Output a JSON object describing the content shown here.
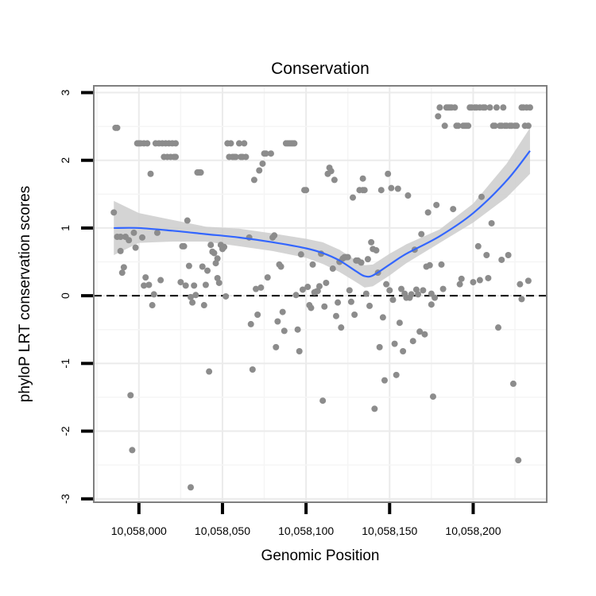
{
  "chart_data": {
    "type": "scatter",
    "title": "Conservation",
    "xlabel": "Genomic Position",
    "ylabel": "phyloP LRT conservation scores",
    "xlim": [
      10057973,
      10058244
    ],
    "ylim": [
      -3.05,
      3.1
    ],
    "x_ticks": [
      10058000,
      10058050,
      10058100,
      10058150,
      10058200
    ],
    "x_tick_labels": [
      "10,058,000",
      "10,058,050",
      "10,058,100",
      "10,058,150",
      "10,058,200"
    ],
    "y_ticks": [
      -3,
      -2,
      -1,
      0,
      1,
      2,
      3
    ],
    "y_tick_labels": [
      "-3",
      "-2",
      "-1",
      "0",
      "1",
      "2",
      "3"
    ],
    "reference_line": {
      "y": 0,
      "style": "dashed"
    },
    "grid": true,
    "colors": {
      "points": "#8c8c8c",
      "smooth": "#3366ff",
      "ribbon": "#cccccc",
      "panel_border": "#7f7f7f",
      "grid": "#ebebeb"
    },
    "series": [
      {
        "name": "phyloP LRT",
        "points": [
          [
            10057985,
            1.23
          ],
          [
            10057986,
            2.48
          ],
          [
            10057987,
            2.48
          ],
          [
            10057987,
            0.87
          ],
          [
            10057989,
            0.66
          ],
          [
            10057989,
            0.87
          ],
          [
            10057990,
            0.34
          ],
          [
            10057991,
            0.42
          ],
          [
            10057992,
            0.87
          ],
          [
            10057994,
            0.82
          ],
          [
            10057995,
            -1.47
          ],
          [
            10057996,
            -2.28
          ],
          [
            10057997,
            0.93
          ],
          [
            10057998,
            0.71
          ],
          [
            10057999,
            2.25
          ],
          [
            10058000,
            2.25
          ],
          [
            10058001,
            2.25
          ],
          [
            10058002,
            0.86
          ],
          [
            10058003,
            2.25
          ],
          [
            10058003,
            0.15
          ],
          [
            10058004,
            0.27
          ],
          [
            10058005,
            2.25
          ],
          [
            10058006,
            0.16
          ],
          [
            10058007,
            1.8
          ],
          [
            10058008,
            -0.14
          ],
          [
            10058009,
            0.02
          ],
          [
            10058010,
            2.25
          ],
          [
            10058011,
            0.93
          ],
          [
            10058012,
            2.25
          ],
          [
            10058013,
            0.23
          ],
          [
            10058014,
            2.25
          ],
          [
            10058015,
            2.05
          ],
          [
            10058016,
            2.25
          ],
          [
            10058017,
            2.05
          ],
          [
            10058018,
            2.25
          ],
          [
            10058019,
            2.05
          ],
          [
            10058020,
            2.25
          ],
          [
            10058021,
            2.05
          ],
          [
            10058022,
            2.25
          ],
          [
            10058022,
            2.05
          ],
          [
            10058025,
            0.2
          ],
          [
            10058026,
            0.73
          ],
          [
            10058027,
            0.73
          ],
          [
            10058028,
            0.15
          ],
          [
            10058029,
            1.11
          ],
          [
            10058030,
            0.44
          ],
          [
            10058031,
            -0.02
          ],
          [
            10058031,
            -2.83
          ],
          [
            10058032,
            -0.1
          ],
          [
            10058033,
            0.15
          ],
          [
            10058034,
            0.01
          ],
          [
            10058035,
            1.82
          ],
          [
            10058036,
            1.82
          ],
          [
            10058037,
            1.82
          ],
          [
            10058038,
            0.43
          ],
          [
            10058039,
            -0.14
          ],
          [
            10058040,
            0.16
          ],
          [
            10058041,
            0.37
          ],
          [
            10058042,
            -1.12
          ],
          [
            10058043,
            0.75
          ],
          [
            10058044,
            0.65
          ],
          [
            10058045,
            0.63
          ],
          [
            10058046,
            0.48
          ],
          [
            10058047,
            0.26
          ],
          [
            10058047,
            0.55
          ],
          [
            10058048,
            0.19
          ],
          [
            10058049,
            0.75
          ],
          [
            10058050,
            0.69
          ],
          [
            10058051,
            0.72
          ],
          [
            10058052,
            -0.01
          ],
          [
            10058053,
            2.25
          ],
          [
            10058054,
            2.05
          ],
          [
            10058055,
            2.25
          ],
          [
            10058056,
            2.05
          ],
          [
            10058057,
            2.05
          ],
          [
            10058058,
            2.05
          ],
          [
            10058060,
            2.25
          ],
          [
            10058061,
            2.05
          ],
          [
            10058062,
            2.05
          ],
          [
            10058063,
            2.25
          ],
          [
            10058064,
            2.05
          ],
          [
            10058066,
            0.86
          ],
          [
            10058067,
            -0.42
          ],
          [
            10058068,
            -1.09
          ],
          [
            10058069,
            1.71
          ],
          [
            10058070,
            0.1
          ],
          [
            10058071,
            -0.28
          ],
          [
            10058072,
            1.85
          ],
          [
            10058073,
            0.12
          ],
          [
            10058074,
            1.95
          ],
          [
            10058075,
            2.1
          ],
          [
            10058076,
            2.1
          ],
          [
            10058077,
            0.27
          ],
          [
            10058079,
            2.1
          ],
          [
            10058080,
            0.86
          ],
          [
            10058081,
            0.89
          ],
          [
            10058082,
            -0.76
          ],
          [
            10058083,
            -0.38
          ],
          [
            10058084,
            0.46
          ],
          [
            10058085,
            0.43
          ],
          [
            10058086,
            -0.24
          ],
          [
            10058087,
            -0.52
          ],
          [
            10058088,
            2.25
          ],
          [
            10058089,
            2.25
          ],
          [
            10058090,
            2.25
          ],
          [
            10058091,
            2.25
          ],
          [
            10058092,
            2.25
          ],
          [
            10058093,
            2.25
          ],
          [
            10058094,
            0.01
          ],
          [
            10058095,
            -0.5
          ],
          [
            10058096,
            -0.82
          ],
          [
            10058097,
            0.61
          ],
          [
            10058098,
            0.09
          ],
          [
            10058099,
            1.56
          ],
          [
            10058100,
            1.56
          ],
          [
            10058101,
            0.13
          ],
          [
            10058102,
            -0.14
          ],
          [
            10058103,
            -0.18
          ],
          [
            10058104,
            0.46
          ],
          [
            10058105,
            0.05
          ],
          [
            10058106,
            0.06
          ],
          [
            10058107,
            0.07
          ],
          [
            10058108,
            0.14
          ],
          [
            10058109,
            0.62
          ],
          [
            10058110,
            -1.55
          ],
          [
            10058111,
            -0.16
          ],
          [
            10058112,
            0.19
          ],
          [
            10058113,
            1.8
          ],
          [
            10058114,
            1.89
          ],
          [
            10058115,
            1.84
          ],
          [
            10058116,
            0.4
          ],
          [
            10058117,
            1.71
          ],
          [
            10058118,
            -0.3
          ],
          [
            10058119,
            -0.1
          ],
          [
            10058120,
            0.5
          ],
          [
            10058121,
            -0.47
          ],
          [
            10058122,
            0.55
          ],
          [
            10058123,
            0.57
          ],
          [
            10058124,
            0.57
          ],
          [
            10058125,
            0.57
          ],
          [
            10058126,
            0.08
          ],
          [
            10058127,
            -0.09
          ],
          [
            10058128,
            1.45
          ],
          [
            10058129,
            -0.28
          ],
          [
            10058130,
            0.52
          ],
          [
            10058131,
            0.52
          ],
          [
            10058132,
            1.56
          ],
          [
            10058133,
            0.49
          ],
          [
            10058134,
            1.56
          ],
          [
            10058134,
            1.73
          ],
          [
            10058135,
            1.56
          ],
          [
            10058136,
            0.03
          ],
          [
            10058137,
            0.54
          ],
          [
            10058138,
            -0.15
          ],
          [
            10058139,
            0.79
          ],
          [
            10058140,
            0.69
          ],
          [
            10058141,
            -1.67
          ],
          [
            10058142,
            0.67
          ],
          [
            10058143,
            0.34
          ],
          [
            10058144,
            -0.76
          ],
          [
            10058145,
            1.56
          ],
          [
            10058146,
            -0.32
          ],
          [
            10058147,
            -1.25
          ],
          [
            10058148,
            0.17
          ],
          [
            10058149,
            1.8
          ],
          [
            10058150,
            0.08
          ],
          [
            10058151,
            1.59
          ],
          [
            10058152,
            -0.06
          ],
          [
            10058153,
            -0.71
          ],
          [
            10058154,
            -1.17
          ],
          [
            10058155,
            1.58
          ],
          [
            10058156,
            -0.4
          ],
          [
            10058157,
            0.1
          ],
          [
            10058158,
            -0.82
          ],
          [
            10058159,
            0.03
          ],
          [
            10058160,
            -0.03
          ],
          [
            10058161,
            1.48
          ],
          [
            10058162,
            -0.03
          ],
          [
            10058163,
            0.02
          ],
          [
            10058164,
            -0.67
          ],
          [
            10058165,
            0.68
          ],
          [
            10058166,
            0.09
          ],
          [
            10058167,
            0.02
          ],
          [
            10058168,
            -0.53
          ],
          [
            10058169,
            0.91
          ],
          [
            10058170,
            0.08
          ],
          [
            10058171,
            -0.57
          ],
          [
            10058172,
            0.43
          ],
          [
            10058173,
            1.23
          ],
          [
            10058174,
            0.45
          ],
          [
            10058175,
            -0.13
          ],
          [
            10058175,
            0.03
          ],
          [
            10058176,
            -1.49
          ],
          [
            10058177,
            -0.03
          ],
          [
            10058178,
            1.34
          ],
          [
            10058179,
            2.65
          ],
          [
            10058180,
            2.78
          ],
          [
            10058181,
            0.46
          ],
          [
            10058182,
            0.1
          ],
          [
            10058183,
            2.51
          ],
          [
            10058184,
            2.78
          ],
          [
            10058185,
            2.78
          ],
          [
            10058186,
            2.78
          ],
          [
            10058187,
            2.78
          ],
          [
            10058188,
            1.28
          ],
          [
            10058189,
            2.78
          ],
          [
            10058190,
            2.51
          ],
          [
            10058191,
            2.51
          ],
          [
            10058192,
            0.17
          ],
          [
            10058193,
            0.25
          ],
          [
            10058194,
            2.51
          ],
          [
            10058195,
            2.51
          ],
          [
            10058196,
            2.51
          ],
          [
            10058197,
            2.51
          ],
          [
            10058198,
            2.78
          ],
          [
            10058199,
            2.78
          ],
          [
            10058200,
            0.2
          ],
          [
            10058201,
            2.78
          ],
          [
            10058202,
            2.78
          ],
          [
            10058203,
            0.73
          ],
          [
            10058204,
            0.23
          ],
          [
            10058204,
            2.78
          ],
          [
            10058205,
            1.46
          ],
          [
            10058206,
            2.78
          ],
          [
            10058207,
            2.78
          ],
          [
            10058208,
            0.6
          ],
          [
            10058209,
            0.26
          ],
          [
            10058210,
            2.78
          ],
          [
            10058211,
            1.07
          ],
          [
            10058212,
            2.51
          ],
          [
            10058213,
            2.51
          ],
          [
            10058214,
            2.78
          ],
          [
            10058215,
            -0.47
          ],
          [
            10058216,
            2.51
          ],
          [
            10058217,
            0.53
          ],
          [
            10058217,
            2.51
          ],
          [
            10058218,
            2.78
          ],
          [
            10058219,
            2.51
          ],
          [
            10058220,
            2.51
          ],
          [
            10058221,
            0.6
          ],
          [
            10058222,
            2.51
          ],
          [
            10058223,
            2.51
          ],
          [
            10058224,
            -1.3
          ],
          [
            10058225,
            2.51
          ],
          [
            10058226,
            2.51
          ],
          [
            10058227,
            -2.43
          ],
          [
            10058228,
            0.17
          ],
          [
            10058229,
            2.78
          ],
          [
            10058229,
            -0.05
          ],
          [
            10058230,
            2.78
          ],
          [
            10058231,
            2.51
          ],
          [
            10058232,
            2.78
          ],
          [
            10058233,
            2.51
          ],
          [
            10058233,
            0.22
          ],
          [
            10058234,
            2.78
          ]
        ]
      }
    ],
    "smooth": {
      "method": "loess",
      "x": [
        10057985,
        10058000,
        10058020,
        10058040,
        10058060,
        10058080,
        10058100,
        10058110,
        10058120,
        10058130,
        10058135,
        10058140,
        10058150,
        10058160,
        10058180,
        10058200,
        10058220,
        10058234
      ],
      "y": [
        1.0,
        1.0,
        0.96,
        0.91,
        0.86,
        0.79,
        0.7,
        0.63,
        0.52,
        0.36,
        0.29,
        0.3,
        0.46,
        0.62,
        0.88,
        1.22,
        1.7,
        2.14
      ],
      "lower": [
        0.6,
        0.78,
        0.8,
        0.8,
        0.73,
        0.66,
        0.56,
        0.47,
        0.35,
        0.2,
        0.12,
        0.14,
        0.3,
        0.48,
        0.78,
        1.08,
        1.45,
        1.8
      ],
      "upper": [
        1.4,
        1.22,
        1.12,
        1.02,
        0.99,
        0.92,
        0.84,
        0.79,
        0.68,
        0.52,
        0.45,
        0.46,
        0.62,
        0.76,
        0.98,
        1.36,
        1.95,
        2.48
      ]
    }
  }
}
